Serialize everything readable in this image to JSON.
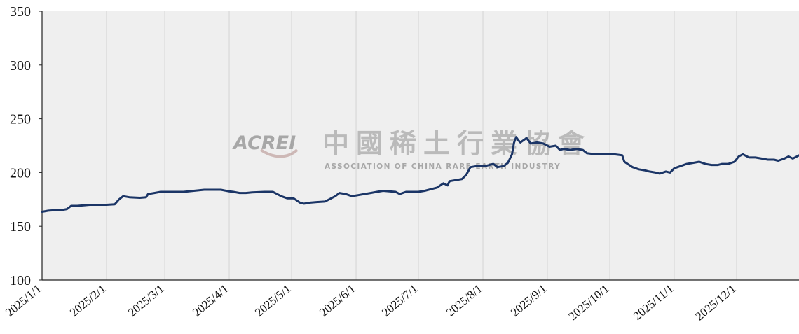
{
  "chart_data": {
    "type": "line",
    "title": "",
    "xlabel": "",
    "ylabel": "",
    "ylim": [
      100,
      350
    ],
    "xlim": [
      "2025-01-01",
      "2025-12-31"
    ],
    "yticks": [
      "100",
      "150",
      "200",
      "250",
      "300",
      "350"
    ],
    "xticks": [
      {
        "label": "2025/1/1",
        "date": "2025-01-01"
      },
      {
        "label": "2025/2/1",
        "date": "2025-02-01"
      },
      {
        "label": "2025/3/1",
        "date": "2025-03-01"
      },
      {
        "label": "2025/4/1",
        "date": "2025-04-01"
      },
      {
        "label": "2025/5/1",
        "date": "2025-05-01"
      },
      {
        "label": "2025/6/1",
        "date": "2025-06-01"
      },
      {
        "label": "2025/7/1",
        "date": "2025-07-01"
      },
      {
        "label": "2025/8/1",
        "date": "2025-08-01"
      },
      {
        "label": "2025/9/1",
        "date": "2025-09-01"
      },
      {
        "label": "2025/10/1",
        "date": "2025-10-01"
      },
      {
        "label": "2025/11/1",
        "date": "2025-11-01"
      },
      {
        "label": "2025/12/1",
        "date": "2025-12-01"
      }
    ],
    "grid": "vertical",
    "line_color": "#1b3566",
    "plot_background": "#efefef",
    "series": [
      {
        "points": [
          [
            "2025-01-01",
            163.5
          ],
          [
            "2025-01-04",
            164.5
          ],
          [
            "2025-01-07",
            165
          ],
          [
            "2025-01-10",
            165
          ],
          [
            "2025-01-13",
            166
          ],
          [
            "2025-01-15",
            169
          ],
          [
            "2025-01-18",
            169
          ],
          [
            "2025-01-21",
            169.5
          ],
          [
            "2025-01-24",
            170
          ],
          [
            "2025-02-01",
            170
          ],
          [
            "2025-02-05",
            170.5
          ],
          [
            "2025-02-07",
            175
          ],
          [
            "2025-02-09",
            178
          ],
          [
            "2025-02-12",
            177
          ],
          [
            "2025-02-17",
            176.5
          ],
          [
            "2025-02-20",
            177
          ],
          [
            "2025-02-21",
            180
          ],
          [
            "2025-02-24",
            181
          ],
          [
            "2025-02-27",
            182
          ],
          [
            "2025-03-03",
            182
          ],
          [
            "2025-03-10",
            182
          ],
          [
            "2025-03-15",
            183
          ],
          [
            "2025-03-20",
            184
          ],
          [
            "2025-03-28",
            184
          ],
          [
            "2025-04-01",
            182.5
          ],
          [
            "2025-04-03",
            182
          ],
          [
            "2025-04-06",
            181
          ],
          [
            "2025-04-09",
            181
          ],
          [
            "2025-04-12",
            181.5
          ],
          [
            "2025-04-18",
            182
          ],
          [
            "2025-04-22",
            182
          ],
          [
            "2025-04-24",
            180
          ],
          [
            "2025-04-26",
            178
          ],
          [
            "2025-04-29",
            176
          ],
          [
            "2025-05-02",
            176
          ],
          [
            "2025-05-05",
            172
          ],
          [
            "2025-05-07",
            171
          ],
          [
            "2025-05-10",
            172
          ],
          [
            "2025-05-13",
            172.5
          ],
          [
            "2025-05-17",
            173
          ],
          [
            "2025-05-20",
            176
          ],
          [
            "2025-05-22",
            178
          ],
          [
            "2025-05-24",
            181
          ],
          [
            "2025-05-27",
            180
          ],
          [
            "2025-05-30",
            178
          ],
          [
            "2025-06-02",
            179
          ],
          [
            "2025-06-05",
            180
          ],
          [
            "2025-06-08",
            181
          ],
          [
            "2025-06-11",
            182
          ],
          [
            "2025-06-14",
            183
          ],
          [
            "2025-06-17",
            182.5
          ],
          [
            "2025-06-20",
            182
          ],
          [
            "2025-06-22",
            180
          ],
          [
            "2025-06-25",
            182
          ],
          [
            "2025-06-28",
            182
          ],
          [
            "2025-07-01",
            182
          ],
          [
            "2025-07-04",
            183
          ],
          [
            "2025-07-08",
            185
          ],
          [
            "2025-07-10",
            186
          ],
          [
            "2025-07-13",
            190
          ],
          [
            "2025-07-15",
            188
          ],
          [
            "2025-07-16",
            192
          ],
          [
            "2025-07-19",
            193
          ],
          [
            "2025-07-22",
            194
          ],
          [
            "2025-07-24",
            198
          ],
          [
            "2025-07-26",
            205
          ],
          [
            "2025-07-29",
            206
          ],
          [
            "2025-08-02",
            206
          ],
          [
            "2025-08-06",
            208
          ],
          [
            "2025-08-08",
            205
          ],
          [
            "2025-08-11",
            206
          ],
          [
            "2025-08-13",
            209
          ],
          [
            "2025-08-15",
            217
          ],
          [
            "2025-08-16",
            228
          ],
          [
            "2025-08-17",
            233
          ],
          [
            "2025-08-18",
            230
          ],
          [
            "2025-08-19",
            228
          ],
          [
            "2025-08-22",
            232
          ],
          [
            "2025-08-24",
            227
          ],
          [
            "2025-08-27",
            228
          ],
          [
            "2025-08-30",
            227
          ],
          [
            "2025-09-02",
            224
          ],
          [
            "2025-09-05",
            225
          ],
          [
            "2025-09-07",
            221
          ],
          [
            "2025-09-09",
            222
          ],
          [
            "2025-09-12",
            221
          ],
          [
            "2025-09-15",
            222
          ],
          [
            "2025-09-18",
            221
          ],
          [
            "2025-09-20",
            218
          ],
          [
            "2025-09-24",
            217
          ],
          [
            "2025-09-29",
            217
          ],
          [
            "2025-10-03",
            217
          ],
          [
            "2025-10-07",
            216
          ],
          [
            "2025-10-08",
            210
          ],
          [
            "2025-10-12",
            205
          ],
          [
            "2025-10-15",
            203
          ],
          [
            "2025-10-18",
            202
          ],
          [
            "2025-10-20",
            201
          ],
          [
            "2025-10-23",
            200
          ],
          [
            "2025-10-25",
            199
          ],
          [
            "2025-10-28",
            201
          ],
          [
            "2025-10-30",
            200
          ],
          [
            "2025-11-01",
            204
          ],
          [
            "2025-11-04",
            206
          ],
          [
            "2025-11-07",
            208
          ],
          [
            "2025-11-10",
            209
          ],
          [
            "2025-11-13",
            210
          ],
          [
            "2025-11-16",
            208
          ],
          [
            "2025-11-19",
            207
          ],
          [
            "2025-11-22",
            207
          ],
          [
            "2025-11-24",
            208
          ],
          [
            "2025-11-27",
            208
          ],
          [
            "2025-11-30",
            210
          ],
          [
            "2025-12-02",
            215
          ],
          [
            "2025-12-04",
            217
          ],
          [
            "2025-12-07",
            214
          ],
          [
            "2025-12-10",
            214
          ],
          [
            "2025-12-13",
            213
          ],
          [
            "2025-12-16",
            212
          ],
          [
            "2025-12-19",
            212
          ],
          [
            "2025-12-21",
            211
          ],
          [
            "2025-12-24",
            213
          ],
          [
            "2025-12-26",
            215
          ],
          [
            "2025-12-28",
            213
          ],
          [
            "2025-12-30",
            215
          ],
          [
            "2025-12-31",
            216
          ]
        ]
      }
    ]
  },
  "watermark": {
    "latin": "ACREI",
    "chinese": "中國稀土行業協會",
    "subtitle": "ASSOCIATION OF CHINA RARE EARTH INDUSTRY"
  }
}
